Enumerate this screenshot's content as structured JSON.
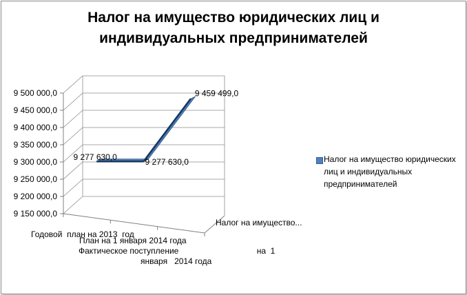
{
  "chart_data": {
    "type": "line",
    "title_lines": [
      "Налог на имущество юридических лиц и",
      "индивидуальных предпринимателей"
    ],
    "categories": [
      "Годовой  план на 2013  год",
      "План на 1 января 2014 года",
      "Фактическое поступление                                  на  1 января   2014 года"
    ],
    "series": [
      {
        "name": "Налог на имущество юридических лиц и индивидуальных предпринимателей",
        "values": [
          9277630.0,
          9277630.0,
          9459499.0
        ],
        "labels": [
          "9 277 630,0",
          "9 277 630,0",
          "9 459 499,0"
        ]
      }
    ],
    "depth_axis_label": "Налог на имущество...",
    "y_tick_labels": [
      "9 150 000,0",
      "9 200 000,0",
      "9 250 000,0",
      "9 300 000,0",
      "9 350 000,0",
      "9 400 000,0",
      "9 450 000,0",
      "9 500 000,0"
    ],
    "ylim": [
      9150000,
      9500000
    ],
    "grid": true,
    "legend_position": "right",
    "colors": {
      "series": "#4f81bd",
      "series_dark": "#17375e",
      "grid": "#8c8c8c",
      "axis": "#7f7f7f"
    }
  }
}
